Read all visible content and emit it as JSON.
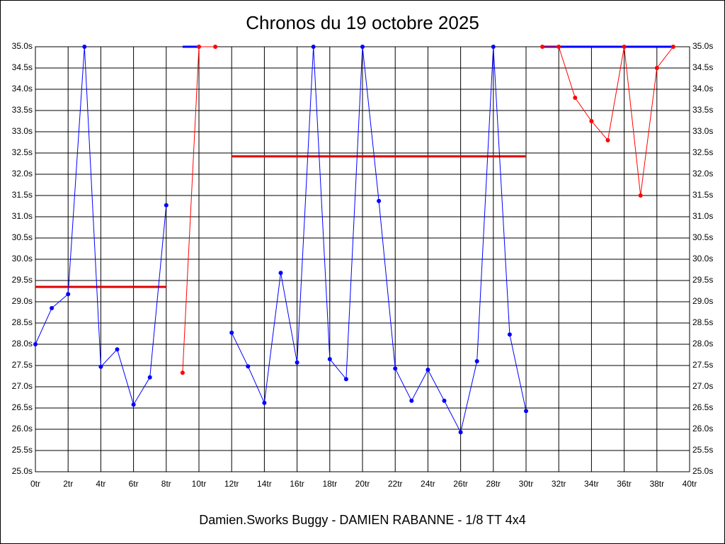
{
  "chart_data": {
    "type": "line",
    "title": "Chronos du 19 octobre 2025",
    "subtitle": "Damien.Sworks Buggy - DAMIEN RABANNE - 1/8 TT 4x4",
    "x": [
      0,
      1,
      2,
      3,
      4,
      5,
      6,
      7,
      8,
      9,
      10,
      11,
      12,
      13,
      14,
      15,
      16,
      17,
      18,
      19,
      20,
      21,
      22,
      23,
      24,
      25,
      26,
      27,
      28,
      29,
      30,
      31,
      32,
      33,
      34,
      35,
      36,
      37,
      38,
      39
    ],
    "series": [
      {
        "color": "#0000ff",
        "values": [
          28.0,
          28.85,
          29.18,
          35.0,
          27.47,
          27.88,
          26.58,
          27.22,
          31.27,
          null,
          null,
          null,
          28.27,
          27.48,
          26.62,
          29.68,
          27.57,
          35.0,
          27.65,
          27.18,
          35.0,
          31.37,
          27.43,
          26.67,
          27.4,
          26.67,
          25.93,
          27.6,
          35.0,
          28.23,
          26.43,
          null,
          null,
          null,
          null,
          null,
          null,
          null,
          null,
          null
        ]
      },
      {
        "color": "#ff0000",
        "values": [
          null,
          null,
          null,
          null,
          null,
          null,
          null,
          null,
          null,
          27.33,
          35.0,
          35.0,
          null,
          null,
          null,
          null,
          null,
          null,
          null,
          null,
          null,
          null,
          null,
          null,
          null,
          null,
          null,
          null,
          null,
          null,
          null,
          35.0,
          35.0,
          33.8,
          33.25,
          32.8,
          35.0,
          31.5,
          34.5,
          35.0
        ]
      }
    ],
    "reference_lines": [
      {
        "x": [
          0,
          8
        ],
        "y": 29.35,
        "color": "#e00000"
      },
      {
        "x": [
          9,
          10
        ],
        "y": 35.0,
        "color": "#0000ff"
      },
      {
        "x": [
          12,
          30
        ],
        "y": 32.42,
        "color": "#e00000"
      },
      {
        "x": [
          31,
          39
        ],
        "y": 35.0,
        "color": "#0000ff"
      }
    ],
    "xlim": [
      0,
      40
    ],
    "xticks": [
      {
        "value": 0,
        "label": "0tr"
      },
      {
        "value": 2,
        "label": "2tr"
      },
      {
        "value": 4,
        "label": "4tr"
      },
      {
        "value": 6,
        "label": "6tr"
      },
      {
        "value": 8,
        "label": "8tr"
      },
      {
        "value": 10,
        "label": "10tr"
      },
      {
        "value": 12,
        "label": "12tr"
      },
      {
        "value": 14,
        "label": "14tr"
      },
      {
        "value": 16,
        "label": "16tr"
      },
      {
        "value": 18,
        "label": "18tr"
      },
      {
        "value": 20,
        "label": "20tr"
      },
      {
        "value": 22,
        "label": "22tr"
      },
      {
        "value": 24,
        "label": "24tr"
      },
      {
        "value": 26,
        "label": "26tr"
      },
      {
        "value": 28,
        "label": "28tr"
      },
      {
        "value": 30,
        "label": "30tr"
      },
      {
        "value": 32,
        "label": "32tr"
      },
      {
        "value": 34,
        "label": "34tr"
      },
      {
        "value": 36,
        "label": "36tr"
      },
      {
        "value": 38,
        "label": "38tr"
      },
      {
        "value": 40,
        "label": "40tr"
      }
    ],
    "ylim": [
      25,
      35
    ],
    "yticks": [
      {
        "value": 25,
        "label": "25.0s"
      },
      {
        "value": 25.5,
        "label": "25.5s"
      },
      {
        "value": 26,
        "label": "26.0s"
      },
      {
        "value": 26.5,
        "label": "26.5s"
      },
      {
        "value": 27,
        "label": "27.0s"
      },
      {
        "value": 27.5,
        "label": "27.5s"
      },
      {
        "value": 28,
        "label": "28.0s"
      },
      {
        "value": 28.5,
        "label": "28.5s"
      },
      {
        "value": 29,
        "label": "29.0s"
      },
      {
        "value": 29.5,
        "label": "29.5s"
      },
      {
        "value": 30,
        "label": "30.0s"
      },
      {
        "value": 30.5,
        "label": "30.5s"
      },
      {
        "value": 31,
        "label": "31.0s"
      },
      {
        "value": 31.5,
        "label": "31.5s"
      },
      {
        "value": 32,
        "label": "32.0s"
      },
      {
        "value": 32.5,
        "label": "32.5s"
      },
      {
        "value": 33,
        "label": "33.0s"
      },
      {
        "value": 33.5,
        "label": "33.5s"
      },
      {
        "value": 34,
        "label": "34.0s"
      },
      {
        "value": 34.5,
        "label": "34.5s"
      },
      {
        "value": 35,
        "label": "35.0s"
      }
    ],
    "grid": true
  }
}
